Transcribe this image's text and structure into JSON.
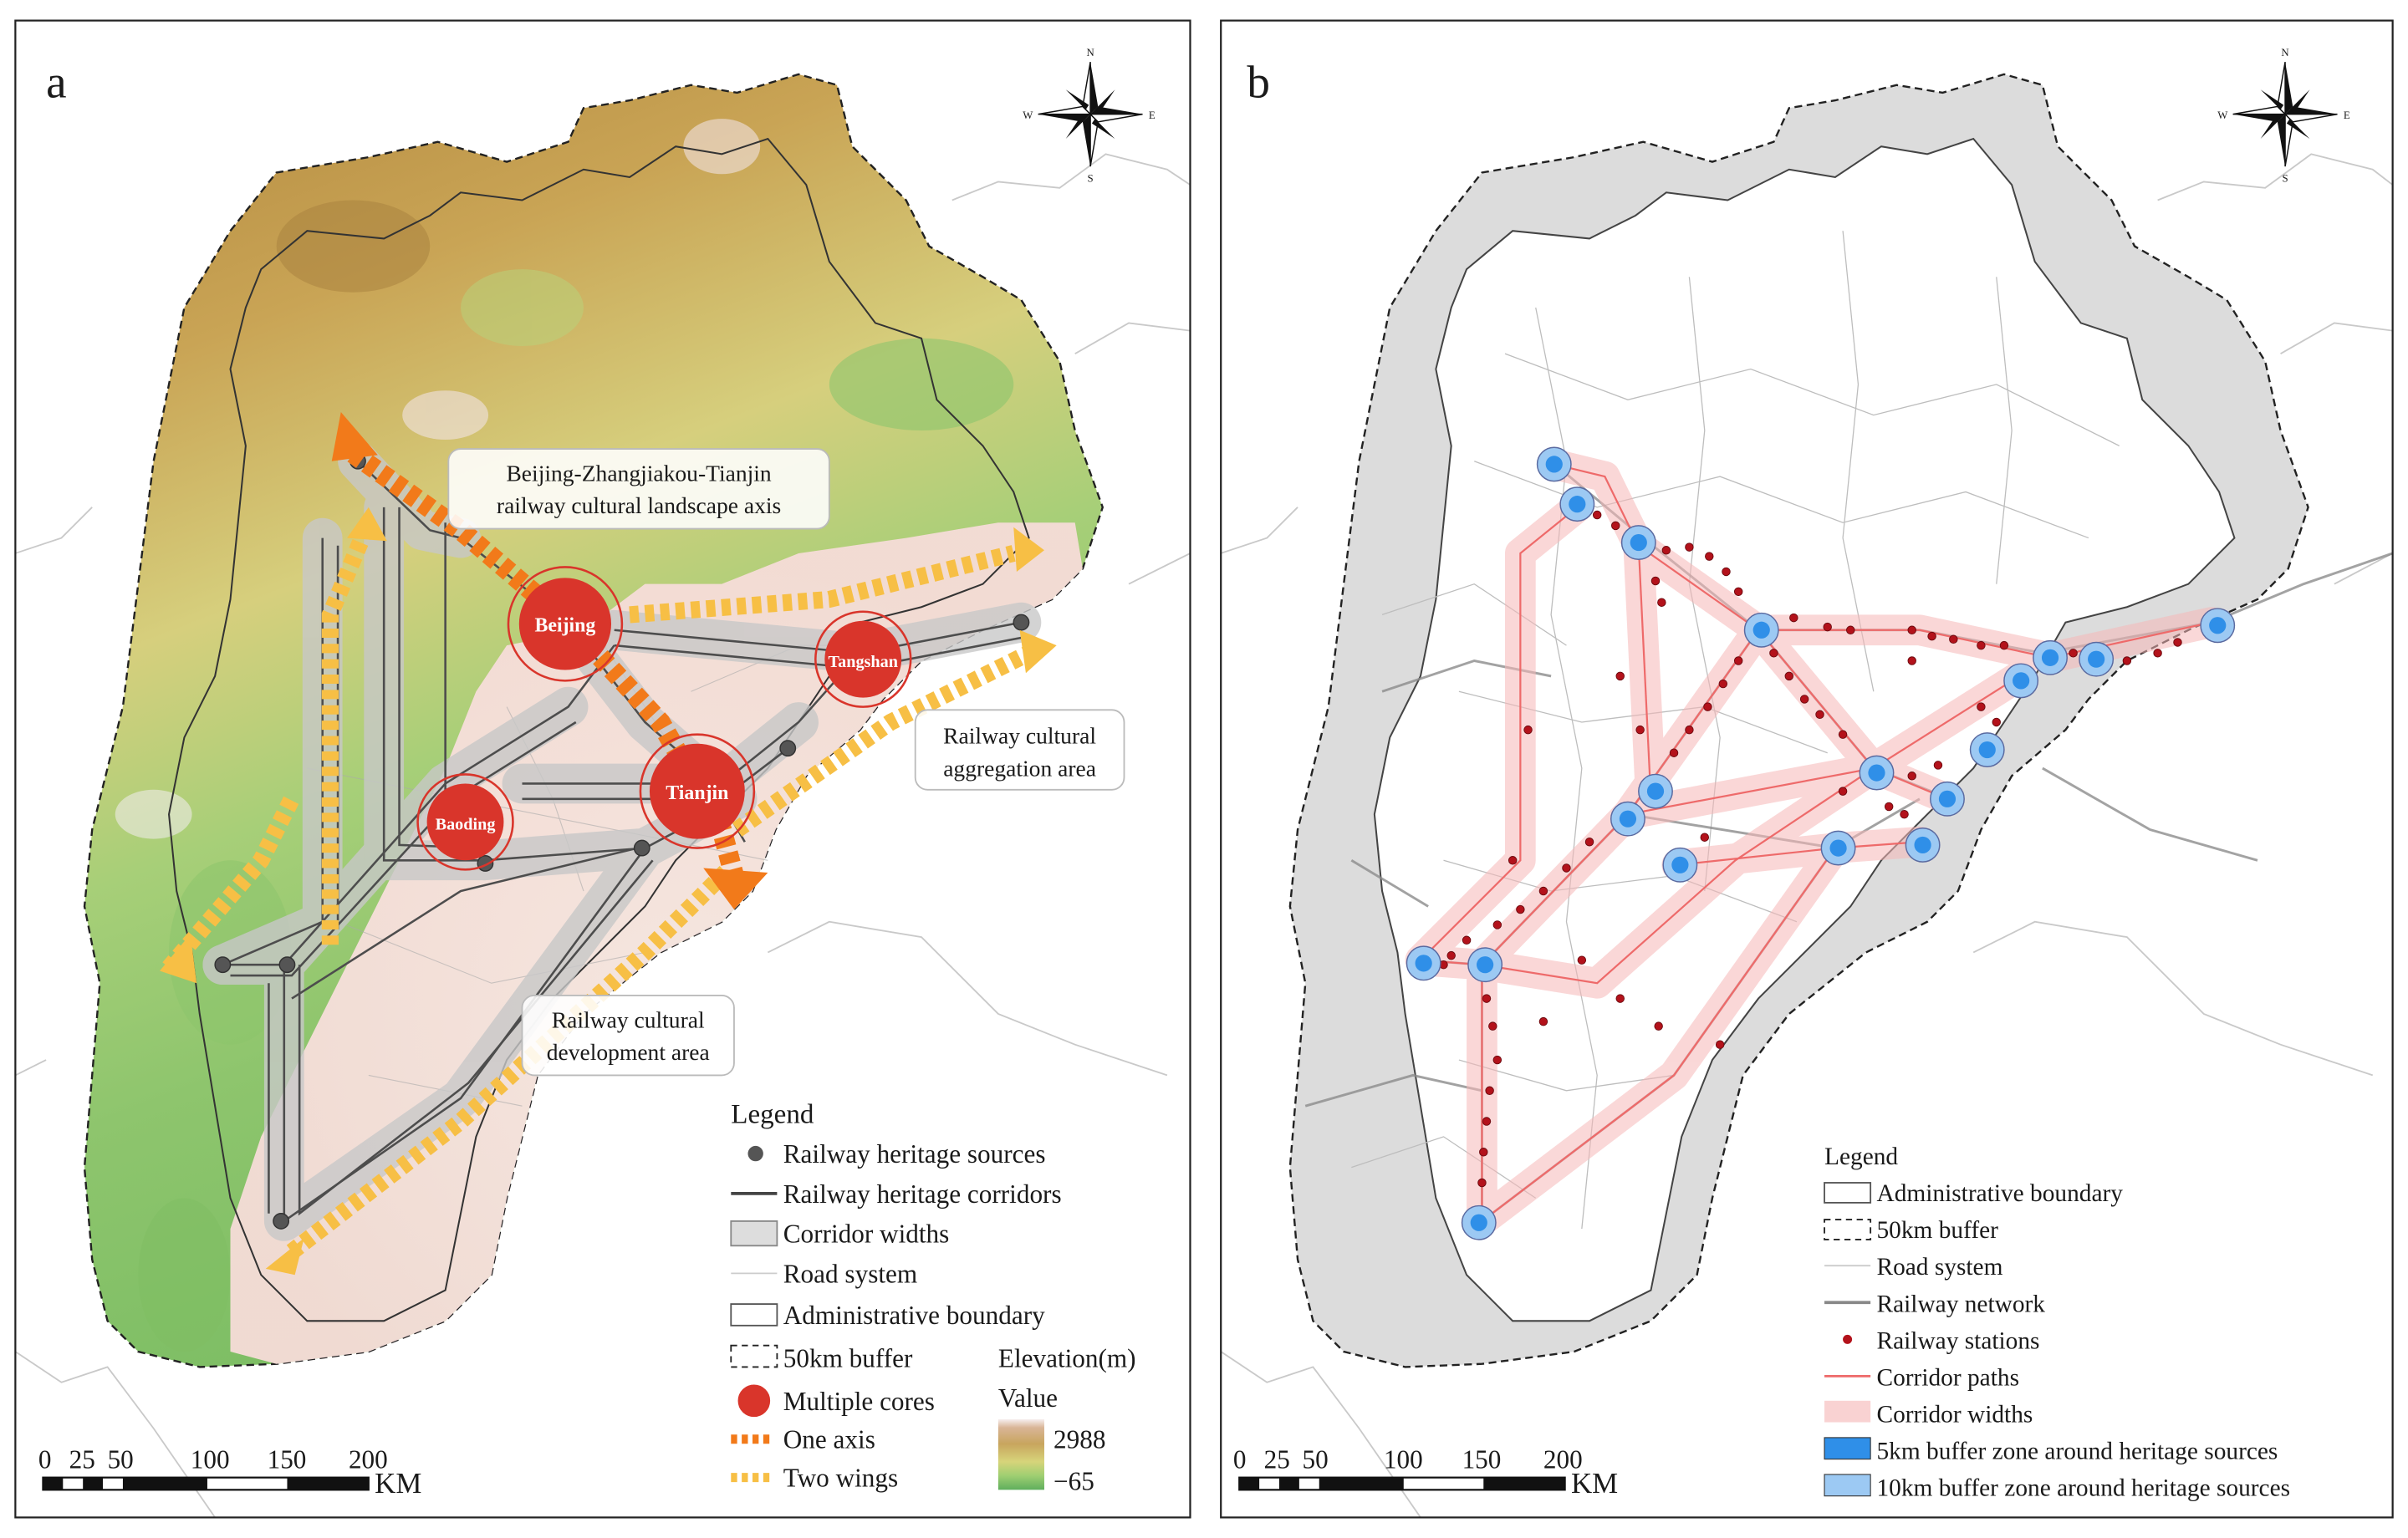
{
  "panel_a": {
    "letter": "a",
    "cores": [
      {
        "name": "Beijing"
      },
      {
        "name": "Tangshan"
      },
      {
        "name": "Tianjin"
      },
      {
        "name": "Baoding"
      }
    ],
    "callouts": {
      "axis_line1": "Beijing-Zhangjiakou-Tianjin",
      "axis_line2": "railway cultural landscape axis",
      "aggregation_line1": "Railway cultural",
      "aggregation_line2": "aggregation area",
      "development_line1": "Railway cultural",
      "development_line2": "development area"
    },
    "legend": {
      "title": "Legend",
      "items": [
        "Railway heritage sources",
        "Railway heritage corridors",
        "Corridor widths",
        "Road system",
        "Administrative boundary",
        "50km buffer",
        "Multiple cores",
        "One axis",
        "Two wings"
      ],
      "elevation_title": "Elevation(m)",
      "elevation_value": "Value",
      "elevation_max": "2988",
      "elevation_min": "−65"
    },
    "scale": {
      "ticks": [
        "0",
        "25",
        "50",
        "100",
        "150",
        "200"
      ],
      "unit": "KM"
    },
    "compass": {
      "n": "N",
      "s": "S",
      "e": "E",
      "w": "W"
    }
  },
  "panel_b": {
    "letter": "b",
    "legend": {
      "title": "Legend",
      "items": [
        "Administrative boundary",
        "50km buffer",
        "Road system",
        "Railway network",
        "Railway stations",
        "Corridor paths",
        "Corridor widths",
        "5km buffer zone around heritage sources",
        "10km buffer zone around heritage sources"
      ]
    },
    "scale": {
      "ticks": [
        "0",
        "25",
        "50",
        "100",
        "150",
        "200"
      ],
      "unit": "KM"
    },
    "compass": {
      "n": "N",
      "s": "S",
      "e": "E",
      "w": "W"
    }
  },
  "colors": {
    "core_red": "#d9352b",
    "axis_orange": "#f27a1a",
    "wing_yellow": "#f7bf45",
    "corridor_pink": "#f6b8b8",
    "station_red": "#b3121b",
    "buffer_blue": "#2f8fe8",
    "buffer_light_blue": "#9cc9f3",
    "outer_gray": "#d9d9d9"
  }
}
